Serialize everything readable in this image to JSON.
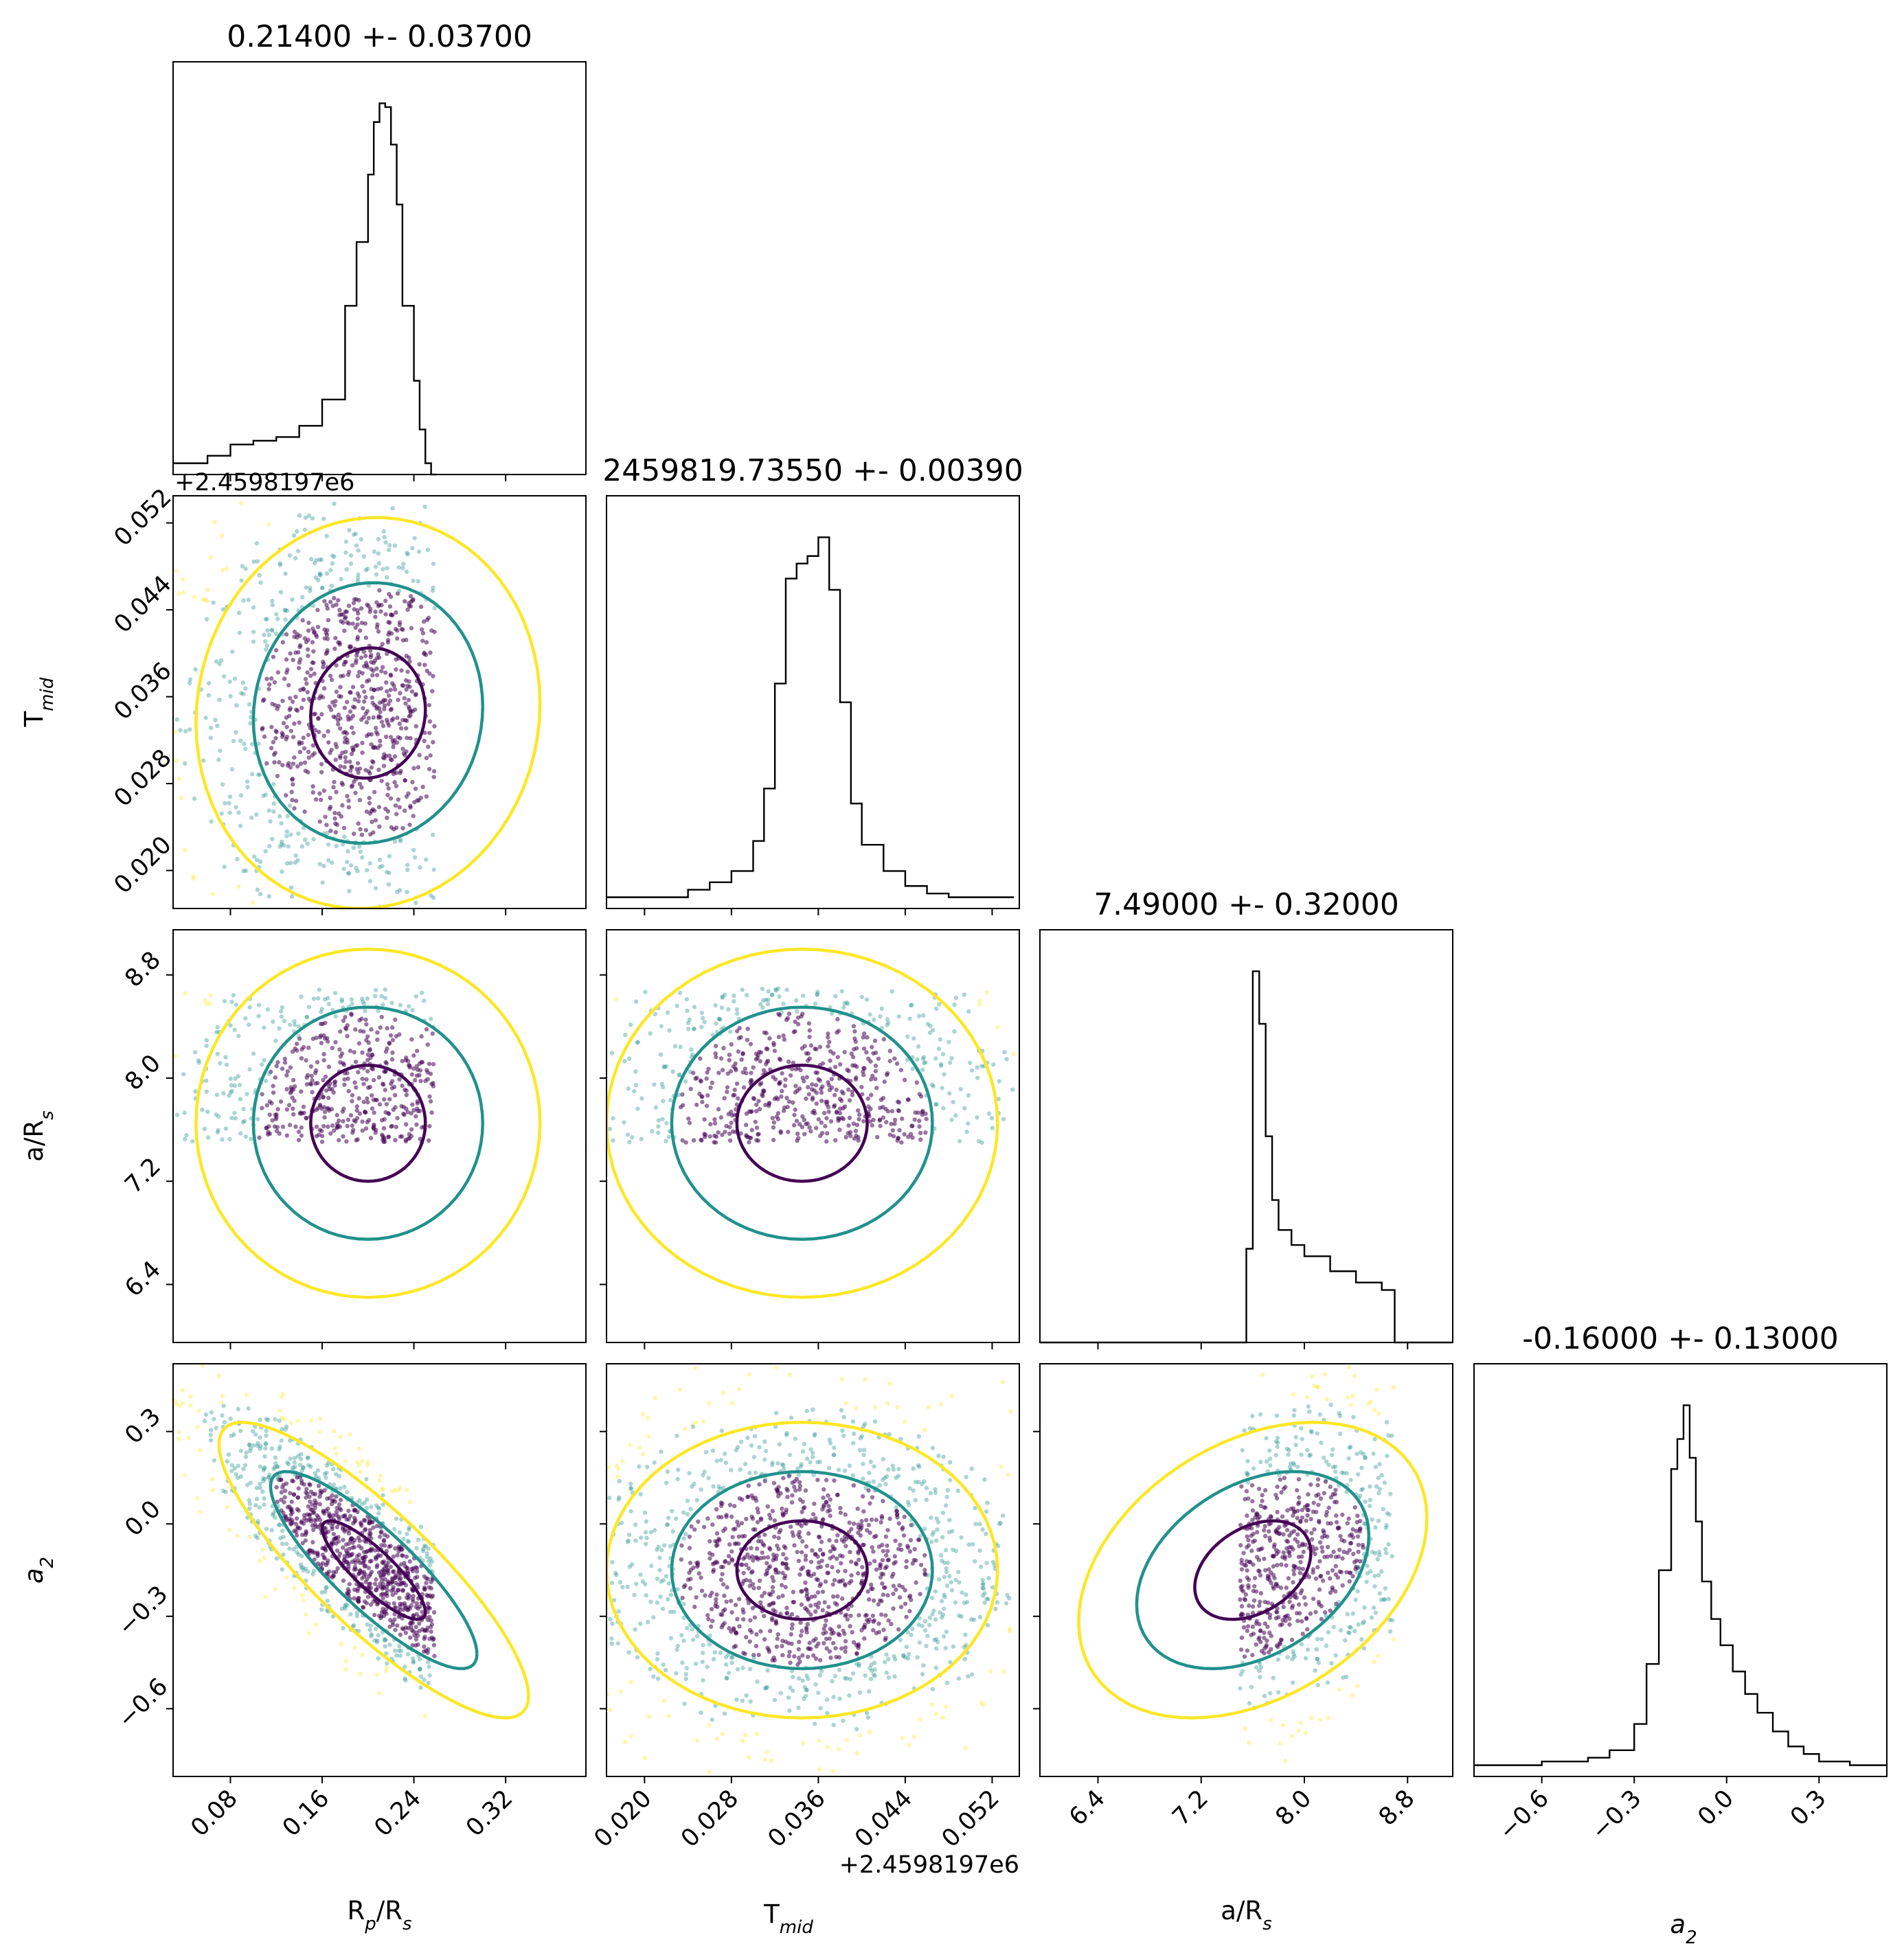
{
  "chart_data": {
    "type": "corner",
    "params": [
      {
        "key": "rp",
        "label": "R",
        "sub": "p",
        "label_rest": "/R",
        "sub2": "s",
        "range": [
          0.03,
          0.39
        ],
        "ticks": [
          "0.08",
          "0.16",
          "0.24",
          "0.32"
        ],
        "tick_values": [
          0.08,
          0.16,
          0.24,
          0.32
        ],
        "title": "0.21400 +- 0.03700",
        "hist": {
          "x": [
            0.03,
            0.06,
            0.08,
            0.1,
            0.12,
            0.14,
            0.16,
            0.18,
            0.19,
            0.2,
            0.205,
            0.21,
            0.215,
            0.22,
            0.225,
            0.23,
            0.24,
            0.245,
            0.25,
            0.255,
            0.26
          ],
          "y": [
            3,
            5,
            8,
            9,
            10,
            13,
            20,
            45,
            62,
            80,
            94,
            99,
            98,
            88,
            72,
            45,
            25,
            12,
            3,
            0,
            0
          ]
        }
      },
      {
        "key": "tmid",
        "label": "T",
        "sub": "mid",
        "label_rest": "",
        "sub2": "",
        "range": [
          0.0165,
          0.0545
        ],
        "ticks": [
          "0.020",
          "0.028",
          "0.036",
          "0.044",
          "0.052"
        ],
        "tick_values": [
          0.02,
          0.028,
          0.036,
          0.044,
          0.052
        ],
        "offset": "+2.4598197e6",
        "title": "2459819.73550 +- 0.00390",
        "hist": {
          "x": [
            0.0165,
            0.02,
            0.024,
            0.026,
            0.028,
            0.03,
            0.031,
            0.032,
            0.033,
            0.034,
            0.035,
            0.036,
            0.037,
            0.038,
            0.039,
            0.04,
            0.042,
            0.044,
            0.046,
            0.048,
            0.052,
            0.054
          ],
          "y": [
            3,
            3,
            5,
            7,
            10,
            18,
            32,
            60,
            88,
            92,
            94,
            99,
            85,
            55,
            28,
            17,
            10,
            6,
            4,
            3,
            3,
            3
          ]
        }
      },
      {
        "key": "ars",
        "label": "a/R",
        "sub": "s",
        "label_rest": "",
        "sub2": "",
        "range": [
          5.95,
          9.15
        ],
        "ticks": [
          "6.4",
          "7.2",
          "8.0",
          "8.8"
        ],
        "tick_values": [
          6.4,
          7.2,
          8.0,
          8.8
        ],
        "title": "7.49000 +- 0.32000",
        "hist": {
          "x": [
            5.95,
            7.5,
            7.55,
            7.6,
            7.65,
            7.7,
            7.75,
            7.8,
            7.9,
            8.0,
            8.2,
            8.4,
            8.6,
            8.7,
            8.8,
            9.15
          ],
          "y": [
            0,
            0,
            25,
            99,
            85,
            55,
            38,
            30,
            26,
            23,
            19,
            16,
            14,
            0,
            0,
            0
          ]
        }
      },
      {
        "key": "a2",
        "label": "a",
        "sub": "2",
        "label_rest": "",
        "sub2": "",
        "italic": true,
        "range": [
          -0.82,
          0.52
        ],
        "ticks": [
          "−0.6",
          "−0.3",
          "0.0",
          "0.3"
        ],
        "tick_values": [
          -0.6,
          -0.3,
          0.0,
          0.3
        ],
        "title": "-0.16000 +- 0.13000",
        "hist": {
          "x": [
            -0.82,
            -0.6,
            -0.45,
            -0.38,
            -0.3,
            -0.26,
            -0.22,
            -0.18,
            -0.16,
            -0.14,
            -0.12,
            -0.1,
            -0.08,
            -0.05,
            -0.02,
            0.02,
            0.06,
            0.1,
            0.15,
            0.2,
            0.25,
            0.3,
            0.4,
            0.52
          ],
          "y": [
            3,
            4,
            5,
            7,
            14,
            30,
            55,
            82,
            90,
            99,
            85,
            68,
            52,
            42,
            35,
            28,
            22,
            17,
            12,
            8,
            6,
            4,
            3,
            2
          ]
        }
      }
    ],
    "scatter_colors": {
      "inner": "#440154",
      "mid": "#21918c",
      "outer": "#fde725"
    },
    "pairs": [
      {
        "row": 1,
        "col": 0,
        "center": [
          0.2,
          0.0345
        ],
        "spread": [
          0.05,
          0.006
        ],
        "corr": 0.05,
        "x_clip": [
          0.03,
          0.258
        ],
        "y_clip": [
          0.0165,
          0.0545
        ]
      },
      {
        "row": 2,
        "col": 0,
        "center": [
          0.2,
          7.65
        ],
        "spread": [
          0.05,
          0.45
        ],
        "corr": 0.0,
        "x_clip": [
          0.03,
          0.258
        ],
        "y_clip": [
          7.5,
          8.7
        ]
      },
      {
        "row": 2,
        "col": 1,
        "center": [
          0.0345,
          7.65
        ],
        "spread": [
          0.006,
          0.45
        ],
        "corr": 0.0,
        "x_clip": [
          0.0165,
          0.054
        ],
        "y_clip": [
          7.5,
          8.7
        ]
      },
      {
        "row": 3,
        "col": 0,
        "center": [
          0.205,
          -0.15
        ],
        "spread": [
          0.045,
          0.16
        ],
        "corr": -0.85,
        "x_clip": [
          0.03,
          0.258
        ],
        "y_clip": [
          -0.82,
          0.52
        ]
      },
      {
        "row": 3,
        "col": 1,
        "center": [
          0.0345,
          -0.15
        ],
        "spread": [
          0.006,
          0.16
        ],
        "corr": 0.0,
        "x_clip": [
          0.0165,
          0.054
        ],
        "y_clip": [
          -0.82,
          0.52
        ]
      },
      {
        "row": 3,
        "col": 2,
        "center": [
          7.6,
          -0.15
        ],
        "spread": [
          0.45,
          0.16
        ],
        "corr": 0.35,
        "x_clip": [
          7.5,
          8.7
        ],
        "y_clip": [
          -0.82,
          0.52
        ]
      }
    ]
  }
}
